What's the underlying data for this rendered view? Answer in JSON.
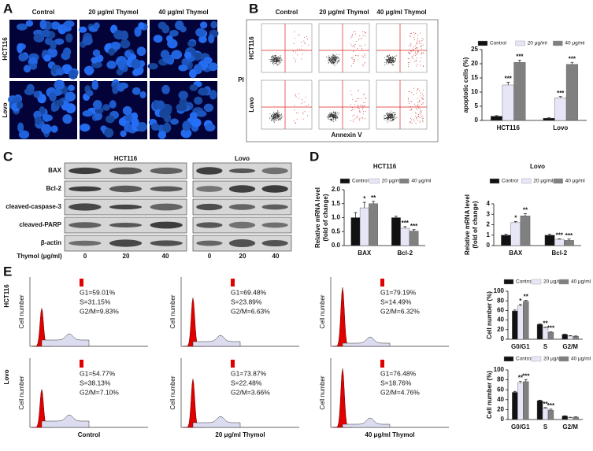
{
  "panel_labels": [
    "A",
    "B",
    "C",
    "D",
    "E"
  ],
  "panel_a": {
    "columns": [
      "Control",
      "20 μg/ml Thymol",
      "40 μg/ml Thymol"
    ],
    "rows": [
      "HCT116",
      "Lovo"
    ]
  },
  "panel_b": {
    "columns": [
      "Control",
      "20 μg/ml Thymol",
      "40 μg/ml Thymol"
    ],
    "rows": [
      "HCT116",
      "Lovo"
    ],
    "y_label": "PI",
    "x_label": "Annexin V"
  },
  "panel_c": {
    "groups": [
      "HCT116",
      "Lovo"
    ],
    "proteins": [
      "BAX",
      "Bcl-2",
      "cleaved-caspase-3",
      "cleaved-PARP",
      "β-actin"
    ],
    "dose_label": "Thymol (μg/ml)",
    "doses": [
      "0",
      "20",
      "40",
      "0",
      "20",
      "40"
    ]
  },
  "panel_e": {
    "columns": [
      "Control",
      "20 μg/ml Thymol",
      "40 μg/ml Thymol"
    ],
    "rows": [
      "HCT116",
      "Lovo"
    ],
    "y_label": "Cell number",
    "stats": [
      [
        "G1=59.01%",
        "S=31.15%",
        "G2/M=9.83%"
      ],
      [
        "G1=69.48%",
        "S=23.89%",
        "G2/M=6.63%"
      ],
      [
        "G1=79.19%",
        "S=14.49%",
        "G2/M=6.32%"
      ],
      [
        "G1=54.77%",
        "S=38.13%",
        "G2/M=7.10%"
      ],
      [
        "G1=73.87%",
        "S=22.48%",
        "G2/M=3.66%"
      ],
      [
        "G1=76.48%",
        "S=18.76%",
        "G2/M=4.76%"
      ]
    ]
  },
  "chart_data": [
    {
      "type": "bar",
      "y_label": "apoptotic cells (%)",
      "categories": [
        "HCT116",
        "Lovo"
      ],
      "ylim": [
        0,
        25
      ],
      "yticks": [
        0,
        5,
        10,
        15,
        20,
        25
      ],
      "series": [
        {
          "name": "Control",
          "color": "#111111",
          "values": [
            1.5,
            0.8
          ],
          "errors": [
            0.2,
            0.1
          ]
        },
        {
          "name": "20 μg/ml",
          "color": "#e6e6f7",
          "values": [
            12.5,
            8
          ],
          "errors": [
            1,
            0.4
          ],
          "labels": [
            "***",
            "***"
          ]
        },
        {
          "name": "40 μg/ml",
          "color": "#808080",
          "values": [
            20.5,
            19.8
          ],
          "errors": [
            0.8,
            0.7
          ],
          "labels": [
            "***",
            "***"
          ]
        }
      ]
    },
    {
      "type": "bar",
      "title": "HCT116",
      "y_label": [
        "Relative mRNA level",
        "(fold of change)"
      ],
      "categories": [
        "BAX",
        "Bcl-2"
      ],
      "ylim": [
        0,
        2
      ],
      "yticks": [
        {
          "value": 0,
          "label": "0.0"
        },
        {
          "value": 0.5,
          "label": "0.5"
        },
        {
          "value": 1,
          "label": "1.0"
        },
        {
          "value": 1.5,
          "label": "1.5"
        },
        {
          "value": 2,
          "label": "2.0"
        }
      ],
      "series": [
        {
          "name": "Control",
          "color": "#111111",
          "values": [
            1,
            1
          ],
          "errors": [
            0.18,
            0.05
          ]
        },
        {
          "name": "20 μg/ml",
          "color": "#e6e6f7",
          "values": [
            1.35,
            0.62
          ],
          "errors": [
            0.2,
            0.06
          ],
          "labels": [
            "*",
            "***"
          ]
        },
        {
          "name": "40 μg/ml",
          "color": "#808080",
          "values": [
            1.5,
            0.52
          ],
          "errors": [
            0.08,
            0.05
          ],
          "labels": [
            "**",
            "***"
          ]
        }
      ]
    },
    {
      "type": "bar",
      "title": "Lovo",
      "y_label": [
        "Relative mRNA level",
        "(fold of change)"
      ],
      "categories": [
        "BAX",
        "Bcl-2"
      ],
      "ylim": [
        0,
        4
      ],
      "yticks": [
        0,
        1,
        2,
        3,
        4
      ],
      "series": [
        {
          "name": "Control",
          "color": "#111111",
          "values": [
            1,
            1
          ],
          "errors": [
            0.1,
            0.1
          ]
        },
        {
          "name": "20 μg/ml",
          "color": "#e6e6f7",
          "values": [
            2.2,
            0.6
          ],
          "errors": [
            0.1,
            0.05
          ],
          "labels": [
            "*",
            "***"
          ]
        },
        {
          "name": "40 μg/ml",
          "color": "#808080",
          "values": [
            2.85,
            0.5
          ],
          "errors": [
            0.2,
            0.12
          ],
          "labels": [
            "**",
            "***"
          ]
        }
      ]
    },
    {
      "type": "bar",
      "y_label": "Cell number (%)",
      "categories": [
        "G0/G1",
        "S",
        "G2/M"
      ],
      "ylim": [
        0,
        100
      ],
      "yticks": [
        0,
        20,
        40,
        60,
        80,
        100
      ],
      "series": [
        {
          "name": "Control",
          "color": "#111111",
          "values": [
            59,
            31,
            10
          ],
          "errors": [
            2,
            1,
            0.5
          ]
        },
        {
          "name": "20 μg/ml",
          "color": "#e6e6f7",
          "values": [
            69.5,
            24,
            6.6
          ],
          "errors": [
            3,
            1.5,
            1
          ],
          "labels": [
            "*",
            "**",
            null
          ]
        },
        {
          "name": "40 μg/ml",
          "color": "#808080",
          "values": [
            79,
            14.5,
            6.3
          ],
          "errors": [
            2,
            1,
            0.5
          ],
          "labels": [
            "**",
            "***",
            null
          ]
        }
      ]
    },
    {
      "type": "bar",
      "y_label": "Cell number (%)",
      "categories": [
        "G0/G1",
        "S",
        "G2/M"
      ],
      "ylim": [
        0,
        100
      ],
      "yticks": [
        0,
        20,
        40,
        60,
        80,
        100
      ],
      "series": [
        {
          "name": "Control",
          "color": "#111111",
          "values": [
            54.8,
            38.1,
            7.1
          ],
          "errors": [
            2,
            1,
            0.5
          ]
        },
        {
          "name": "20 μg/ml",
          "color": "#e6e6f7",
          "values": [
            73.9,
            22.5,
            3.7
          ],
          "errors": [
            3,
            1.5,
            1
          ],
          "labels": [
            "**",
            "**",
            null
          ]
        },
        {
          "name": "40 μg/ml",
          "color": "#808080",
          "values": [
            76.5,
            18.8,
            4.8
          ],
          "errors": [
            4,
            2,
            0.5
          ],
          "labels": [
            "***",
            "***",
            null
          ]
        }
      ]
    }
  ]
}
